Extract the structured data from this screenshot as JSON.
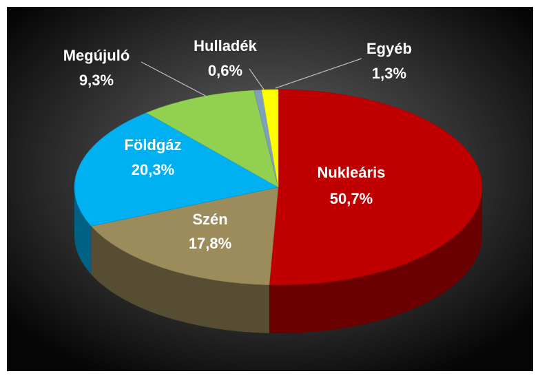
{
  "chart_data": {
    "type": "pie",
    "categories": [
      "Nukleáris",
      "Szén",
      "Földgáz",
      "Megújuló",
      "Hulladék",
      "Egyéb"
    ],
    "values": [
      50.7,
      17.8,
      20.3,
      9.3,
      0.6,
      1.3
    ],
    "value_labels": [
      "50,7%",
      "17,8%",
      "20,3%",
      "9,3%",
      "0,6%",
      "1,3%"
    ],
    "colors": [
      "#c00000",
      "#9c8c5c",
      "#00b0f0",
      "#92d050",
      "#7f9fbf",
      "#ffff00"
    ]
  }
}
